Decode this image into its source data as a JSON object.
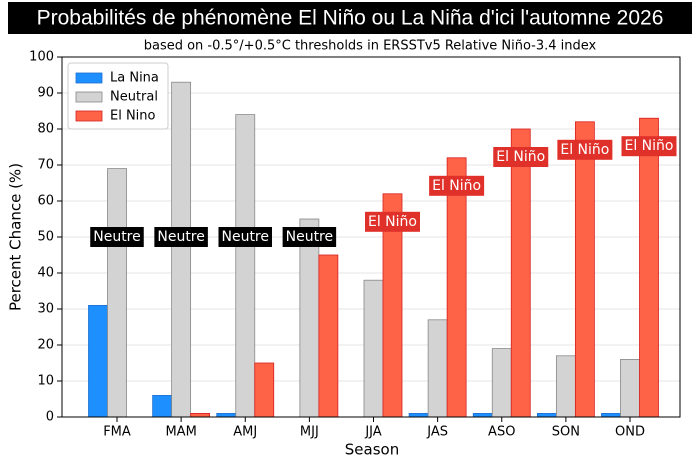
{
  "chart_data": {
    "type": "bar",
    "title": "Probabilités de phénomène El Niño ou La Niña d'ici l'automne 2026",
    "subtitle": "based on -0.5°/+0.5°C thresholds in ERSSTv5 Relative Niño-3.4 index",
    "x_label": "Season",
    "y_label": "Percent Chance (%)",
    "categories": [
      "FMA",
      "MAM",
      "AMJ",
      "MJJ",
      "JJA",
      "JAS",
      "ASO",
      "SON",
      "OND"
    ],
    "series": [
      {
        "name": "La Nina",
        "color": "#1e8fff",
        "values": [
          31,
          6,
          1,
          0,
          0,
          1,
          1,
          1,
          1
        ]
      },
      {
        "name": "Neutral",
        "color": "#d3d3d3",
        "values": [
          69,
          93,
          84,
          55,
          38,
          27,
          19,
          17,
          16
        ]
      },
      {
        "name": "El Nino",
        "color": "#ff6347",
        "values": [
          0,
          1,
          15,
          45,
          62,
          72,
          80,
          82,
          83
        ]
      }
    ],
    "annotations": [
      "Neutre",
      "Neutre",
      "Neutre",
      "Neutre",
      "El Niño",
      "El Niño",
      "El Niño",
      "El Niño",
      "El Niño"
    ],
    "ylim": [
      0,
      100
    ],
    "yticks": [
      0,
      10,
      20,
      30,
      40,
      50,
      60,
      70,
      80,
      90,
      100
    ],
    "grid": true,
    "legend": "upper left"
  }
}
